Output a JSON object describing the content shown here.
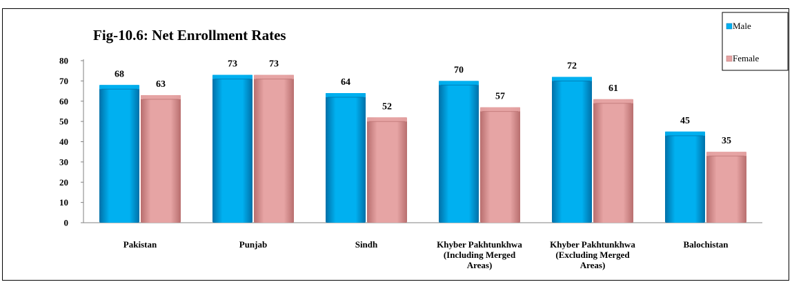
{
  "chart_data": {
    "type": "bar",
    "title": "Fig-10.6: Net Enrollment Rates",
    "xlabel": "",
    "ylabel": "",
    "ylim": [
      0,
      80
    ],
    "yticks": [
      "0",
      "10",
      "20",
      "30",
      "40",
      "50",
      "60",
      "70",
      "80"
    ],
    "grid": false,
    "legend_position": "top-right",
    "categories": [
      [
        "Pakistan"
      ],
      [
        "Punjab"
      ],
      [
        "Sindh"
      ],
      [
        "Khyber Pakhtunkhwa",
        "(Including Merged",
        "Areas)"
      ],
      [
        "Khyber Pakhtunkhwa",
        "(Excluding Merged",
        "Areas)"
      ],
      [
        "Balochistan"
      ]
    ],
    "series": [
      {
        "name": "Male",
        "values": [
          68,
          73,
          64,
          70,
          72,
          45
        ],
        "color": "#00B0F0",
        "color_dark": "#0070A8"
      },
      {
        "name": "Female",
        "values": [
          63,
          73,
          52,
          57,
          61,
          35
        ],
        "color": "#E6A4A4",
        "color_dark": "#B86E6E"
      }
    ]
  }
}
